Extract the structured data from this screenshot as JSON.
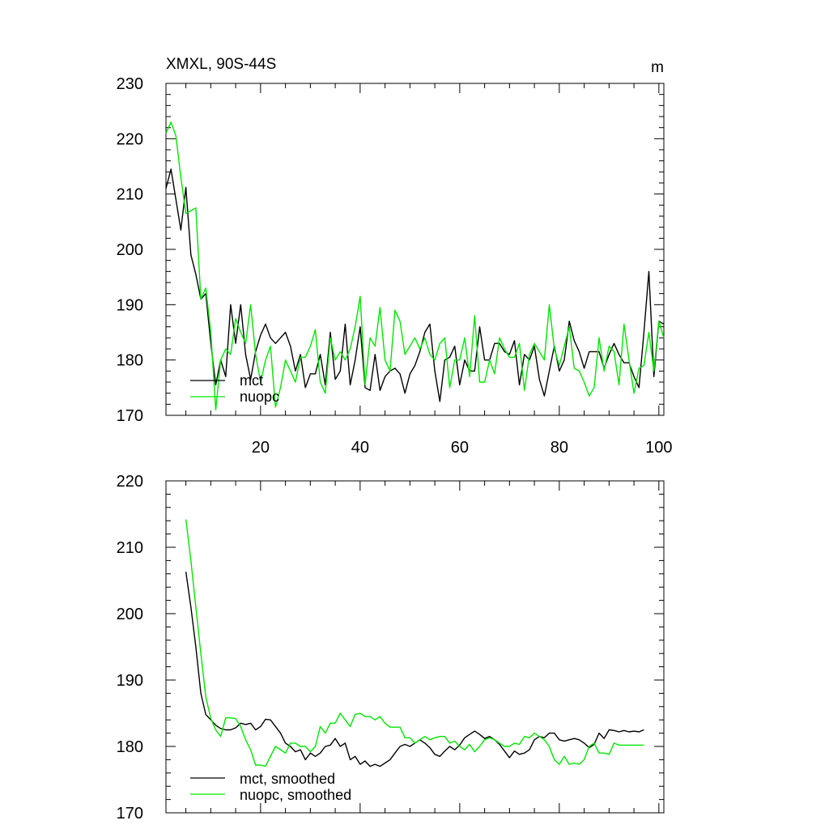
{
  "colors": {
    "mct": "#000000",
    "nuopc": "#00e600"
  },
  "chart_data": [
    {
      "type": "line",
      "title": "XMXL, 90S-44S",
      "units": "m",
      "xlim": [
        1,
        101
      ],
      "ylim": [
        170,
        230
      ],
      "xticks": [
        20,
        40,
        60,
        80,
        100
      ],
      "yticks": [
        170,
        180,
        190,
        200,
        210,
        220,
        230
      ],
      "show_x_tick_labels": true,
      "legend_position": "bottom-left",
      "series": [
        {
          "name": "mct",
          "color": "#000000",
          "x": [
            1,
            2,
            3,
            4,
            5,
            6,
            7,
            8,
            9,
            10,
            11,
            12,
            13,
            14,
            15,
            16,
            17,
            18,
            19,
            20,
            21,
            22,
            23,
            24,
            25,
            26,
            27,
            28,
            29,
            30,
            31,
            32,
            33,
            34,
            35,
            36,
            37,
            38,
            39,
            40,
            41,
            42,
            43,
            44,
            45,
            46,
            47,
            48,
            49,
            50,
            51,
            52,
            53,
            54,
            55,
            56,
            57,
            58,
            59,
            60,
            61,
            62,
            63,
            64,
            65,
            66,
            67,
            68,
            69,
            70,
            71,
            72,
            73,
            74,
            75,
            76,
            77,
            78,
            79,
            80,
            81,
            82,
            83,
            84,
            85,
            86,
            87,
            88,
            89,
            90,
            91,
            92,
            93,
            94,
            95,
            96,
            97,
            98,
            99,
            100,
            101
          ],
          "values": [
            211,
            214.5,
            209,
            203.5,
            211.2,
            199,
            195.5,
            191,
            192,
            183,
            175.5,
            180,
            177,
            190,
            183,
            190,
            181,
            176.5,
            181.5,
            184.5,
            186.5,
            184,
            183,
            184,
            185,
            182.5,
            178,
            181,
            175,
            177.5,
            177.5,
            181,
            175.5,
            185,
            176.5,
            178,
            186.5,
            175.5,
            180,
            186,
            175,
            174.5,
            181,
            174.5,
            177,
            178,
            178.5,
            177.5,
            174,
            177.5,
            179,
            181.5,
            185,
            186.5,
            178,
            172.5,
            180,
            180.5,
            182.5,
            175.5,
            180,
            178,
            178,
            186,
            180,
            180,
            183,
            183,
            181.5,
            181,
            183.5,
            175.5,
            181,
            180,
            182.5,
            176.5,
            173.5,
            178,
            182.5,
            178,
            180,
            187,
            183.5,
            181.5,
            178.5,
            181.5,
            181.5,
            181.5,
            178.5,
            181,
            183,
            181,
            179.5,
            179.5,
            177,
            175,
            185,
            196,
            177,
            187,
            186.5
          ]
        },
        {
          "name": "nuopc",
          "color": "#00e600",
          "x": [
            1,
            2,
            3,
            4,
            5,
            6,
            7,
            8,
            9,
            10,
            11,
            12,
            13,
            14,
            15,
            16,
            17,
            18,
            19,
            20,
            21,
            22,
            23,
            24,
            25,
            26,
            27,
            28,
            29,
            30,
            31,
            32,
            33,
            34,
            35,
            36,
            37,
            38,
            39,
            40,
            41,
            42,
            43,
            44,
            45,
            46,
            47,
            48,
            49,
            50,
            51,
            52,
            53,
            54,
            55,
            56,
            57,
            58,
            59,
            60,
            61,
            62,
            63,
            64,
            65,
            66,
            67,
            68,
            69,
            70,
            71,
            72,
            73,
            74,
            75,
            76,
            77,
            78,
            79,
            80,
            81,
            82,
            83,
            84,
            85,
            86,
            87,
            88,
            89,
            90,
            91,
            92,
            93,
            94,
            95,
            96,
            97,
            98,
            99,
            100,
            101
          ],
          "values": [
            221,
            223,
            220.5,
            213,
            206.5,
            207,
            207.5,
            191,
            193,
            185,
            171,
            180,
            182,
            181,
            187.5,
            185,
            183,
            190,
            181,
            176,
            180,
            182.5,
            171.5,
            175,
            180,
            178,
            176,
            180.5,
            180.5,
            182.5,
            185.5,
            176,
            174,
            184,
            180,
            181.5,
            180,
            182,
            186,
            191.5,
            175.5,
            184,
            182.5,
            189.5,
            180,
            178,
            189,
            187,
            181,
            182.5,
            184,
            182,
            184,
            181,
            180,
            183,
            184,
            175,
            180,
            180,
            184,
            177,
            188,
            176,
            176,
            180,
            177.5,
            184,
            182,
            180.5,
            180.5,
            183,
            174.5,
            181,
            183,
            181.5,
            180,
            190,
            182,
            179,
            182.5,
            186,
            178.5,
            178,
            176,
            173.5,
            175,
            184,
            178,
            182.5,
            181.5,
            175.5,
            186.5,
            180,
            174,
            178.5,
            179,
            185,
            178,
            187,
            184
          ]
        }
      ]
    },
    {
      "type": "line",
      "title": "",
      "xlim": [
        1,
        101
      ],
      "ylim": [
        170,
        220
      ],
      "xticks": [
        20,
        40,
        60,
        80,
        100
      ],
      "yticks": [
        170,
        180,
        190,
        200,
        210,
        220
      ],
      "show_x_tick_labels": false,
      "legend_position": "bottom-left",
      "series": [
        {
          "name": "mct, smoothed",
          "color": "#000000",
          "x": [
            5,
            6,
            7,
            8,
            9,
            10,
            11,
            12,
            13,
            14,
            15,
            16,
            17,
            18,
            19,
            20,
            21,
            22,
            23,
            24,
            25,
            26,
            27,
            28,
            29,
            30,
            31,
            32,
            33,
            34,
            35,
            36,
            37,
            38,
            39,
            40,
            41,
            42,
            43,
            44,
            45,
            46,
            47,
            48,
            49,
            50,
            51,
            52,
            53,
            54,
            55,
            56,
            57,
            58,
            59,
            60,
            61,
            62,
            63,
            64,
            65,
            66,
            67,
            68,
            69,
            70,
            71,
            72,
            73,
            74,
            75,
            76,
            77,
            78,
            79,
            80,
            81,
            82,
            83,
            84,
            85,
            86,
            87,
            88,
            89,
            90,
            91,
            92,
            93,
            94,
            95,
            96,
            97
          ],
          "values": [
            206.3,
            201,
            195,
            188,
            184.8,
            184,
            183.2,
            182.7,
            182.5,
            182.5,
            182.8,
            183.5,
            183.3,
            183.5,
            182.5,
            183,
            184.1,
            184,
            183,
            182,
            180.5,
            180,
            179.2,
            179.5,
            178,
            179,
            178.5,
            179,
            180,
            180.2,
            181.2,
            180,
            180.5,
            178,
            178.5,
            177.3,
            177.8,
            177,
            177.3,
            177,
            177.5,
            178,
            179,
            180,
            180.3,
            180,
            180.5,
            181,
            180.5,
            179.8,
            178.8,
            178.5,
            179.3,
            180,
            179.5,
            180.2,
            181.3,
            181.8,
            182.3,
            181.8,
            181.2,
            181.5,
            181,
            180.3,
            179.3,
            178.3,
            179.3,
            178.8,
            179,
            179.5,
            181,
            181.5,
            181.3,
            182,
            182,
            181,
            180.8,
            181,
            181.2,
            181,
            180.5,
            179.8,
            180.3,
            182,
            181.2,
            182.5,
            182.4,
            182.2,
            182.4,
            182.2,
            182.3,
            182.2,
            182.5
          ]
        },
        {
          "name": "nuopc, smoothed",
          "color": "#00e600",
          "x": [
            5,
            6,
            7,
            8,
            9,
            10,
            11,
            12,
            13,
            14,
            15,
            16,
            17,
            18,
            19,
            20,
            21,
            22,
            23,
            24,
            25,
            26,
            27,
            28,
            29,
            30,
            31,
            32,
            33,
            34,
            35,
            36,
            37,
            38,
            39,
            40,
            41,
            42,
            43,
            44,
            45,
            46,
            47,
            48,
            49,
            50,
            51,
            52,
            53,
            54,
            55,
            56,
            57,
            58,
            59,
            60,
            61,
            62,
            63,
            64,
            65,
            66,
            67,
            68,
            69,
            70,
            71,
            72,
            73,
            74,
            75,
            76,
            77,
            78,
            79,
            80,
            81,
            82,
            83,
            84,
            85,
            86,
            87,
            88,
            89,
            90,
            91,
            92,
            93,
            94,
            95,
            96,
            97
          ],
          "values": [
            214.2,
            208,
            201,
            194,
            187.5,
            184.2,
            182.5,
            181.5,
            184.3,
            184.3,
            184.2,
            183,
            181,
            179.5,
            177.2,
            177.2,
            177,
            178.5,
            180,
            179.5,
            179,
            180.5,
            180.5,
            180,
            180,
            179.2,
            180,
            183,
            182,
            183.5,
            183.5,
            185,
            184,
            183,
            184.8,
            185,
            184.5,
            184.5,
            184,
            184.5,
            183.5,
            182.9,
            182.9,
            182.9,
            181.3,
            181.3,
            180.5,
            181,
            181.5,
            181,
            181.3,
            181.5,
            181.5,
            180.5,
            180.8,
            180,
            179.5,
            180.3,
            179.2,
            180,
            181,
            181.3,
            181,
            180.5,
            180,
            180,
            180.5,
            180.3,
            181.5,
            181.3,
            182,
            181.5,
            181,
            180,
            178,
            177.3,
            178.5,
            177.3,
            177.5,
            177.3,
            178,
            180,
            180.5,
            179,
            179,
            178.8,
            180.5,
            180.2,
            180.2,
            180.2,
            180.2,
            180.2,
            180.2
          ]
        }
      ]
    }
  ]
}
